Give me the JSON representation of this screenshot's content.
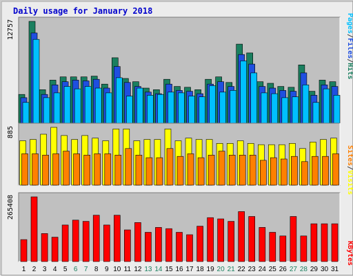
{
  "chart_data": {
    "type": "bar",
    "title": "Daily usage for January 2018",
    "categories": [
      "1",
      "2",
      "3",
      "4",
      "5",
      "6",
      "7",
      "8",
      "9",
      "10",
      "11",
      "12",
      "13",
      "14",
      "15",
      "16",
      "17",
      "18",
      "19",
      "20",
      "21",
      "22",
      "23",
      "24",
      "25",
      "26",
      "27",
      "28",
      "29",
      "30",
      "31"
    ],
    "weekend_days": [
      "6",
      "7",
      "13",
      "14",
      "20",
      "21",
      "27",
      "28"
    ],
    "panels": [
      {
        "id": "top",
        "axis_max_label": "12757",
        "ylim": [
          0,
          12757
        ],
        "legend": [
          {
            "text": "Pages",
            "color": "#00c0ff"
          },
          {
            "text": "/",
            "color": "#404040"
          },
          {
            "text": "Files",
            "color": "#1f4fe0"
          },
          {
            "text": "/",
            "color": "#404040"
          },
          {
            "text": "Hits",
            "color": "#1a7f5f"
          }
        ],
        "series": [
          {
            "name": "Hits",
            "color": "#1a7f5f",
            "values": [
              3600,
              12757,
              4200,
              5400,
              5800,
              5800,
              5800,
              5900,
              4900,
              8200,
              5600,
              5200,
              4400,
              4200,
              5500,
              4600,
              4500,
              4200,
              5500,
              5800,
              5100,
              9900,
              8800,
              5200,
              5000,
              4600,
              4500,
              7300,
              4000,
              5400,
              5200
            ]
          },
          {
            "name": "Files",
            "color": "#1f4fe0",
            "values": [
              3200,
              11300,
              3600,
              4800,
              5200,
              5400,
              5300,
              5500,
              4400,
              7100,
              5100,
              4600,
              3900,
              3700,
              4900,
              4100,
              4000,
              3700,
              4900,
              5200,
              4600,
              8600,
              7400,
              4600,
              4400,
              4100,
              4000,
              6300,
              3500,
              4800,
              4600
            ]
          },
          {
            "name": "Pages",
            "color": "#00c0ff",
            "values": [
              2600,
              10500,
              3200,
              3800,
              4600,
              4300,
              4600,
              4400,
              3800,
              5700,
              3400,
              4400,
              3500,
              3600,
              3900,
              3800,
              3400,
              3300,
              4700,
              3900,
              4100,
              7800,
              6300,
              3800,
              3700,
              3200,
              3300,
              4800,
              2600,
              4300,
              3500
            ]
          }
        ]
      },
      {
        "id": "mid",
        "axis_max_label": "885",
        "ylim": [
          0,
          885
        ],
        "legend": [
          {
            "text": "Sites",
            "color": "#ff8000"
          },
          {
            "text": "/",
            "color": "#404040"
          },
          {
            "text": "Visits",
            "color": "#ffff00"
          }
        ],
        "series": [
          {
            "name": "Visits",
            "color": "#ffff00",
            "values": [
              680,
              700,
              780,
              885,
              760,
              700,
              760,
              720,
              680,
              860,
              860,
              680,
              700,
              700,
              860,
              680,
              720,
              700,
              700,
              640,
              640,
              680,
              640,
              620,
              620,
              620,
              640,
              560,
              660,
              700,
              720
            ]
          },
          {
            "name": "Sites",
            "color": "#ff8000",
            "values": [
              480,
              480,
              460,
              480,
              520,
              480,
              460,
              480,
              480,
              460,
              560,
              460,
              420,
              420,
              560,
              440,
              480,
              420,
              460,
              520,
              460,
              460,
              460,
              380,
              420,
              400,
              440,
              360,
              440,
              440,
              480
            ]
          }
        ]
      },
      {
        "id": "bot",
        "axis_max_label": "265408",
        "ylim": [
          0,
          265408
        ],
        "legend": [
          {
            "text": "KBytes",
            "color": "#ff0000"
          }
        ],
        "series": [
          {
            "name": "KBytes",
            "color": "#ff0000",
            "values": [
              90000,
              265408,
              115000,
              100000,
              150000,
              170000,
              165000,
              190000,
              150000,
              190000,
              130000,
              160000,
              120000,
              140000,
              135000,
              120000,
              110000,
              145000,
              180000,
              175000,
              165000,
              205000,
              185000,
              140000,
              120000,
              105000,
              185000,
              105000,
              155000,
              155000,
              155000
            ]
          }
        ]
      }
    ]
  },
  "colors": {
    "title": "#0000cc",
    "panel_bg": "#c0c0c0",
    "weekday_label": "#000000",
    "weekend_label": "#1a7f5f"
  }
}
